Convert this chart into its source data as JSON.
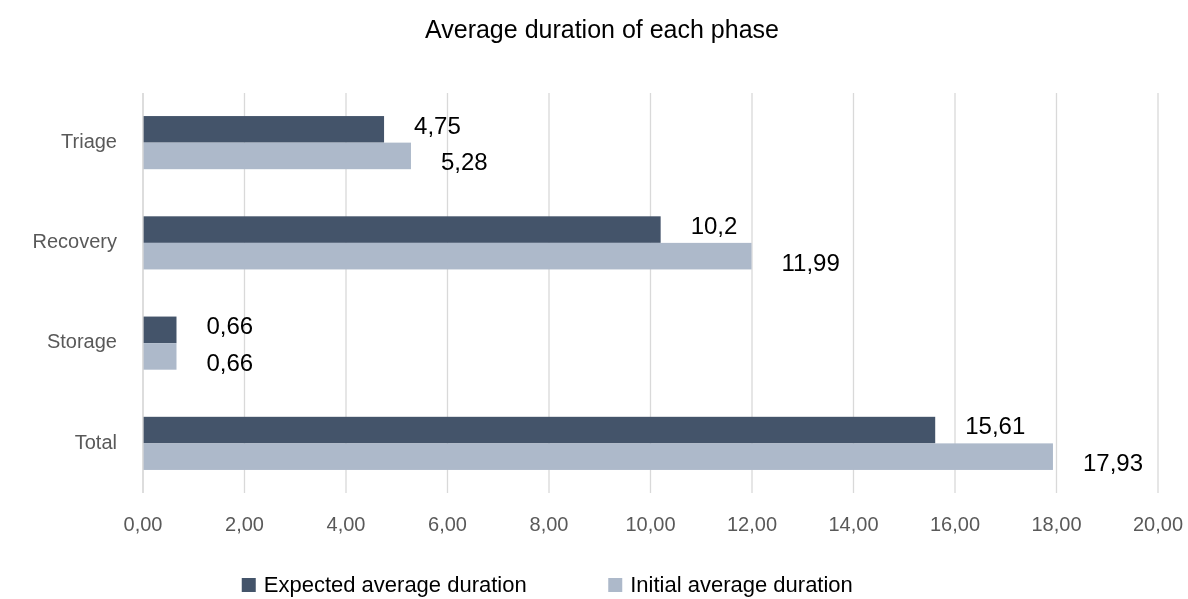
{
  "chart_data": {
    "type": "bar",
    "orientation": "horizontal",
    "title": "Average duration of each phase",
    "categories": [
      "Triage",
      "Recovery",
      "Storage",
      "Total"
    ],
    "series": [
      {
        "name": "Expected average duration",
        "color": "#44546a",
        "values": [
          4.75,
          10.2,
          0.66,
          15.61
        ],
        "value_labels": [
          "4,75",
          "10,2",
          "0,66",
          "15,61"
        ]
      },
      {
        "name": "Initial average duration",
        "color": "#adb9ca",
        "values": [
          5.28,
          11.99,
          0.66,
          17.93
        ],
        "value_labels": [
          "5,28",
          "11,99",
          "0,66",
          "17,93"
        ]
      }
    ],
    "xlim": [
      0,
      20
    ],
    "xticks": [
      {
        "value": 0,
        "label": "0,00"
      },
      {
        "value": 2,
        "label": "2,00"
      },
      {
        "value": 4,
        "label": "4,00"
      },
      {
        "value": 6,
        "label": "6,00"
      },
      {
        "value": 8,
        "label": "8,00"
      },
      {
        "value": 10,
        "label": "10,00"
      },
      {
        "value": 12,
        "label": "12,00"
      },
      {
        "value": 14,
        "label": "14,00"
      },
      {
        "value": 16,
        "label": "16,00"
      },
      {
        "value": 18,
        "label": "18,00"
      },
      {
        "value": 20,
        "label": "20,00"
      }
    ],
    "grid": "x",
    "legend": "bottom"
  }
}
